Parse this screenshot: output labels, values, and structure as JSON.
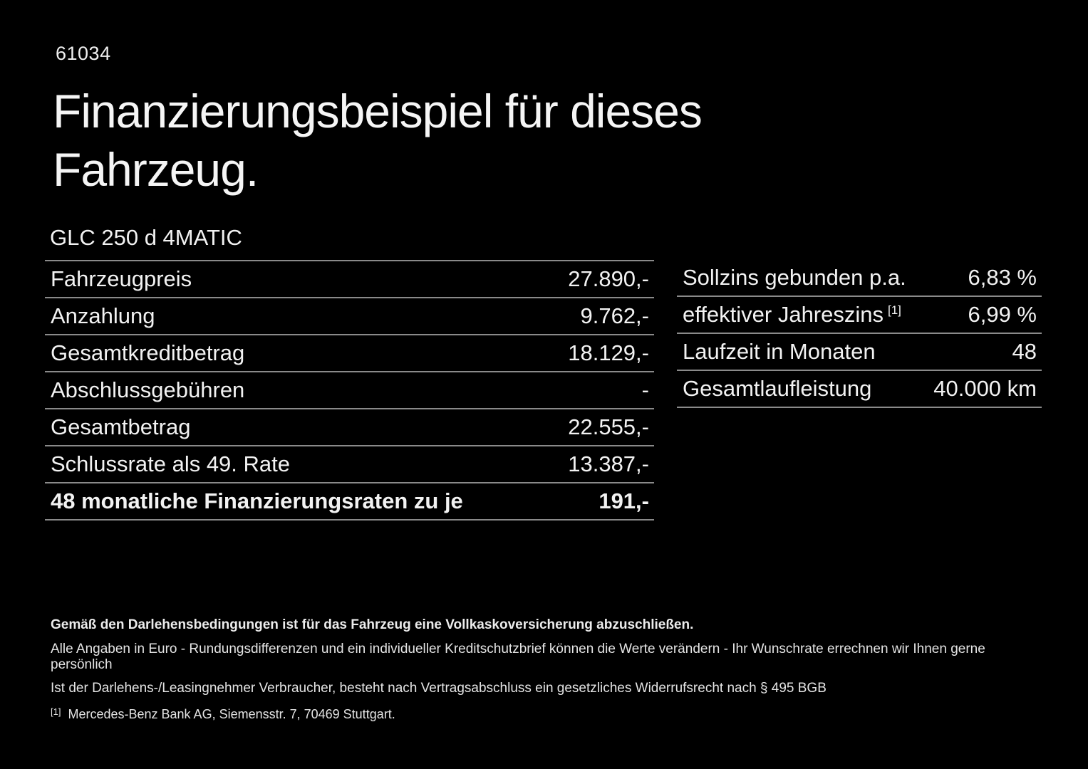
{
  "page": {
    "id_number": "61034",
    "title_line1": "Finanzierungsbeispiel für dieses",
    "title_line2": "Fahrzeug.",
    "vehicle_model": "GLC 250 d 4MATIC"
  },
  "left_table": {
    "rows": [
      {
        "label": "Fahrzeugpreis",
        "value": "27.890,-"
      },
      {
        "label": "Anzahlung",
        "value": "9.762,-"
      },
      {
        "label": "Gesamtkreditbetrag",
        "value": "18.129,-"
      },
      {
        "label": "Abschlussgebühren",
        "value": "-"
      },
      {
        "label": "Gesamtbetrag",
        "value": "22.555,-"
      },
      {
        "label": "Schlussrate als 49. Rate",
        "value": "13.387,-"
      },
      {
        "label": "48 monatliche Finanzierungsraten zu je",
        "value": "191,-"
      }
    ]
  },
  "right_table": {
    "rows": [
      {
        "label": "Sollzins gebunden p.a.",
        "value": "6,83 %"
      },
      {
        "label": "effektiver Jahreszins",
        "superscript": "[1]",
        "value": "6,99 %"
      },
      {
        "label": "Laufzeit in Monaten",
        "value": "48"
      },
      {
        "label": "Gesamtlaufleistung",
        "value": "40.000 km"
      }
    ]
  },
  "footer": {
    "insurance_note": "Gemäß den Darlehensbedingungen ist für das Fahrzeug eine Vollkaskoversicherung abzuschließen.",
    "disclaimer_line1": "Alle Angaben in Euro - Rundungsdifferenzen und ein individueller Kreditschutzbrief können die Werte verändern - Ihr Wunschrate errechnen wir Ihnen gerne persönlich",
    "disclaimer_line2": "Ist der Darlehens-/Leasingnehmer Verbraucher, besteht nach Vertragsabschluss ein gesetzliches Widerrufsrecht nach § 495 BGB",
    "footnote_marker": "[1]",
    "footnote_text": "Mercedes-Benz Bank AG, Siemensstr. 7, 70469 Stuttgart."
  },
  "colors": {
    "background": "#000000",
    "text": "#f2f2f2",
    "divider": "#8a8a8a"
  }
}
